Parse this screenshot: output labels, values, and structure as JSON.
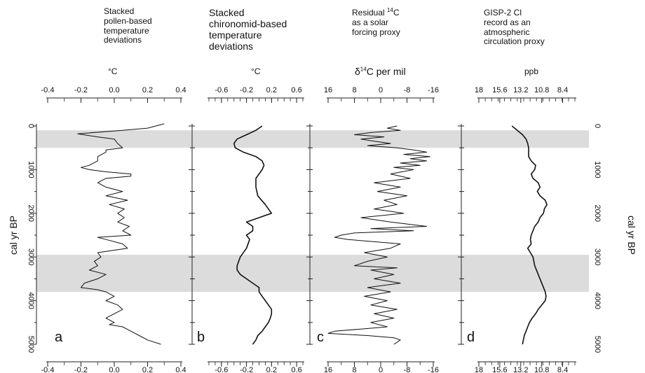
{
  "chart_data": [
    {
      "type": "line",
      "panel": "a",
      "title": "Stacked pollen-based temperature deviations",
      "xlabel": "°C",
      "x_ticks": [
        -0.4,
        -0.2,
        0.0,
        0.2,
        0.4
      ],
      "x_tick_labels": [
        "-0.4",
        "-0.2",
        "0.0",
        "0.2",
        "0.4"
      ],
      "xlim": [
        -0.4,
        0.4
      ],
      "ylabel": "cal yr BP",
      "y_ticks": [
        0,
        1000,
        2000,
        3000,
        4000,
        5000
      ],
      "ylim": [
        0,
        5000
      ],
      "series": [
        {
          "age": [
            -50,
            50,
            100,
            180,
            250,
            300,
            400,
            500,
            550,
            600,
            700,
            800,
            900,
            950,
            1000,
            1050,
            1100,
            1150,
            1200,
            1300,
            1400,
            1500,
            1600,
            1700,
            1800,
            1900,
            2000,
            2100,
            2200,
            2300,
            2400,
            2500,
            2550,
            2600,
            2700,
            2800,
            2900,
            3000,
            3100,
            3200,
            3300,
            3400,
            3500,
            3600,
            3700,
            3750,
            3800,
            3900,
            4000,
            4100,
            4200,
            4300,
            4400,
            4500,
            4550,
            4600,
            4700,
            4800,
            4900,
            5000
          ],
          "value": [
            0.3,
            0.2,
            0.05,
            -0.22,
            -0.1,
            0.0,
            0.02,
            0.05,
            -0.05,
            -0.05,
            -0.1,
            -0.1,
            -0.15,
            -0.2,
            -0.15,
            -0.05,
            0.1,
            0.1,
            -0.05,
            -0.1,
            -0.05,
            0.05,
            -0.05,
            0.08,
            -0.03,
            0.06,
            0.02,
            0.06,
            0.02,
            0.09,
            0.05,
            0.1,
            -0.1,
            -0.05,
            0.05,
            0.08,
            -0.1,
            -0.08,
            -0.12,
            -0.1,
            -0.15,
            -0.05,
            -0.1,
            -0.18,
            -0.2,
            -0.1,
            -0.05,
            0.0,
            -0.05,
            0.02,
            0.05,
            0.0,
            -0.05,
            0.0,
            -0.03,
            0.05,
            0.1,
            0.15,
            0.2,
            0.28
          ]
        }
      ]
    },
    {
      "type": "line",
      "panel": "b",
      "title": "Stacked chironomid-based temperature deviations",
      "xlabel": "°C",
      "x_ticks": [
        -0.6,
        -0.2,
        0.2,
        0.6
      ],
      "x_tick_labels": [
        "-0.6",
        "-0.2",
        "0.2",
        "0.6"
      ],
      "xlim": [
        -0.8,
        0.7
      ],
      "ylim": [
        0,
        5000
      ],
      "series": [
        {
          "age": [
            0,
            100,
            200,
            300,
            400,
            500,
            600,
            700,
            800,
            900,
            1000,
            1200,
            1400,
            1600,
            1800,
            2000,
            2100,
            2200,
            2300,
            2400,
            2500,
            2600,
            2800,
            3000,
            3200,
            3300,
            3400,
            3500,
            3600,
            3700,
            3800,
            3900,
            4000,
            4100,
            4200,
            4300,
            4400,
            4500,
            4600,
            4700,
            4800,
            4900,
            5000
          ],
          "value": [
            0.05,
            -0.05,
            -0.2,
            -0.35,
            -0.4,
            -0.38,
            -0.25,
            -0.05,
            0.05,
            0.08,
            0.05,
            -0.05,
            -0.05,
            -0.02,
            0.1,
            0.2,
            0.0,
            -0.2,
            -0.1,
            -0.1,
            -0.2,
            -0.15,
            -0.2,
            -0.3,
            -0.35,
            -0.35,
            -0.3,
            -0.2,
            -0.1,
            0.0,
            0.0,
            0.05,
            0.1,
            0.15,
            0.2,
            0.2,
            0.18,
            0.15,
            0.1,
            0.05,
            -0.02,
            -0.05,
            -0.1
          ]
        }
      ]
    },
    {
      "type": "line",
      "panel": "c",
      "title": "Residual 14C as a solar forcing proxy",
      "xlabel": "δ14C per mil",
      "x_ticks": [
        16,
        8,
        0,
        -8,
        -16
      ],
      "x_tick_labels": [
        "16",
        "8",
        "0",
        "-8",
        "-16"
      ],
      "xlim": [
        16,
        -16
      ],
      "x_reversed": true,
      "ylim": [
        0,
        5000
      ],
      "series": [
        {
          "age": [
            0,
            50,
            100,
            150,
            200,
            250,
            300,
            350,
            400,
            450,
            500,
            550,
            600,
            650,
            700,
            750,
            800,
            850,
            900,
            950,
            1000,
            1100,
            1200,
            1300,
            1400,
            1500,
            1600,
            1700,
            1800,
            1900,
            2000,
            2100,
            2200,
            2300,
            2350,
            2400,
            2450,
            2500,
            2550,
            2600,
            2650,
            2700,
            2800,
            2900,
            3000,
            3100,
            3200,
            3250,
            3300,
            3400,
            3500,
            3600,
            3700,
            3800,
            3900,
            4000,
            4100,
            4200,
            4300,
            4400,
            4500,
            4600,
            4650,
            4700,
            4750,
            4800,
            4850,
            4900,
            5000
          ],
          "value": [
            -5,
            -2,
            -6,
            3,
            8,
            -1,
            6,
            2,
            -3,
            4,
            -5,
            -10,
            -14,
            -7,
            -15,
            -9,
            -14,
            -6,
            -12,
            -4,
            -10,
            -3,
            -9,
            2,
            -6,
            1,
            -8,
            -1,
            -5,
            2,
            -7,
            6,
            -3,
            -14,
            3,
            -10,
            8,
            12,
            14,
            10,
            2,
            -6,
            -3,
            5,
            -2,
            4,
            8,
            -5,
            3,
            -4,
            2,
            -6,
            4,
            -3,
            5,
            -2,
            3,
            -5,
            2,
            -4,
            3,
            -2,
            6,
            14,
            16,
            4,
            -4,
            -6,
            -4
          ]
        }
      ]
    },
    {
      "type": "line",
      "panel": "d",
      "title": "GISP-2 Cl record as an atmospheric circulation proxy",
      "xlabel": "ppb",
      "x_ticks": [
        18,
        15.6,
        13.2,
        10.8,
        8.4
      ],
      "x_tick_labels": [
        "18",
        "15.6",
        "13.2",
        "10.8",
        "8.4"
      ],
      "xlim": [
        18,
        7
      ],
      "x_reversed": true,
      "y2label": "cal yr BP",
      "ylim": [
        0,
        5000
      ],
      "series": [
        {
          "age": [
            0,
            100,
            200,
            300,
            400,
            500,
            600,
            700,
            800,
            900,
            1000,
            1100,
            1200,
            1300,
            1400,
            1500,
            1600,
            1700,
            1800,
            1900,
            2000,
            2100,
            2200,
            2300,
            2400,
            2500,
            2600,
            2700,
            2800,
            2900,
            3000,
            3200,
            3400,
            3600,
            3800,
            3900,
            4000,
            4100,
            4200,
            4300,
            4400,
            4500,
            4600,
            4700,
            4800,
            4900,
            5000
          ],
          "value": [
            14.2,
            13.6,
            13.0,
            12.6,
            12.4,
            12.3,
            12.3,
            12.3,
            12.0,
            11.5,
            11.6,
            12.0,
            11.8,
            11.2,
            11.0,
            11.3,
            11.0,
            10.4,
            10.2,
            10.5,
            10.6,
            11.0,
            11.2,
            11.6,
            11.8,
            12.0,
            12.1,
            12.0,
            12.4,
            12.1,
            11.8,
            11.6,
            11.2,
            10.8,
            10.4,
            10.3,
            10.4,
            10.8,
            11.2,
            11.5,
            11.9,
            12.2,
            12.4,
            12.6,
            12.8,
            12.9,
            13.0
          ]
        }
      ]
    }
  ],
  "shaded_intervals": [
    [
      100,
      500
    ],
    [
      2950,
      3800
    ]
  ],
  "panel_labels": [
    "a",
    "b",
    "c",
    "d"
  ],
  "titles": {
    "a": "Stacked\npollen-based\ntemperature\ndeviations",
    "b": "Stacked\nchironomid-based\ntemperature\ndeviations",
    "c_pre": "Residual ",
    "c_sup": "14",
    "c_post": "C\nas a solar\nforcing proxy",
    "d": "GISP-2 Cl\nrecord as an\natmospheric\ncirculation proxy"
  },
  "units": {
    "a": "°C",
    "b": "°C",
    "c_pre": "δ",
    "c_sup": "14",
    "c_post": "C per mil",
    "d": "ppb"
  },
  "y_label_left": "cal yr BP",
  "y_label_right": "cal yr BP",
  "colors": {
    "line": "#111111",
    "shade": "#dcdcdc",
    "axis": "#222222"
  }
}
